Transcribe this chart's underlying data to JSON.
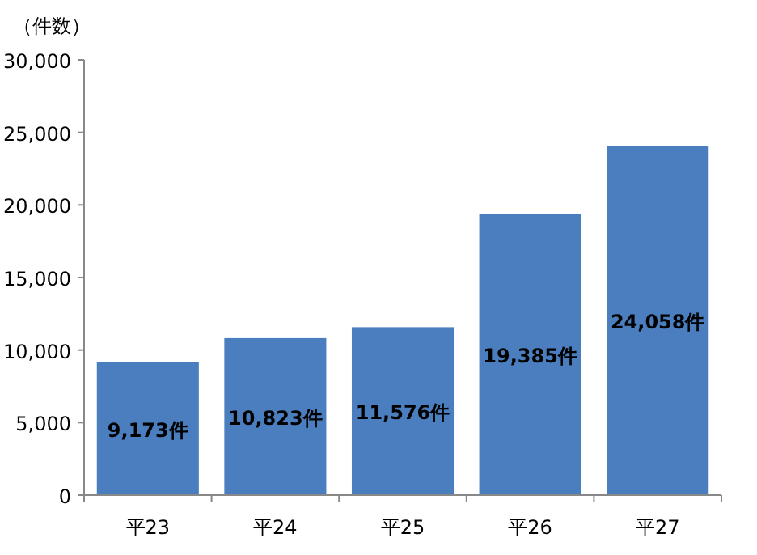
{
  "chart_data": {
    "type": "bar",
    "ylabel": "（件数）",
    "categories": [
      "平23",
      "平24",
      "平25",
      "平26",
      "平27"
    ],
    "values": [
      9173,
      10823,
      11576,
      19385,
      24058
    ],
    "value_labels": [
      "9,173件",
      "10,823件",
      "11,576件",
      "19,385件",
      "24,058件"
    ],
    "color": "#4a7ebf",
    "ylim": [
      0,
      30000
    ],
    "yticks": [
      {
        "value": 0,
        "label": "0"
      },
      {
        "value": 5000,
        "label": "5,000"
      },
      {
        "value": 10000,
        "label": "10,000"
      },
      {
        "value": 15000,
        "label": "15,000"
      },
      {
        "value": 20000,
        "label": "20,000"
      },
      {
        "value": 25000,
        "label": "25,000"
      },
      {
        "value": 30000,
        "label": "30,000"
      }
    ],
    "grid": false
  }
}
